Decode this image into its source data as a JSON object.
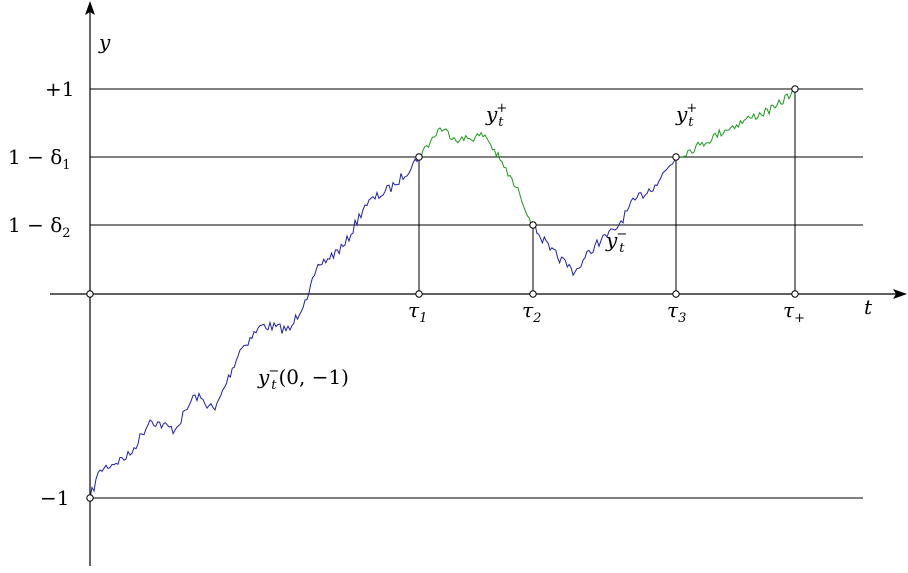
{
  "axes": {
    "x_label": "t",
    "y_label": "y"
  },
  "levels": [
    {
      "value": 1,
      "label": "+1"
    },
    {
      "value": 0.8,
      "label": "1 − δ",
      "sub": "1"
    },
    {
      "value": 0.6,
      "label": "1 − δ",
      "sub": "2"
    },
    {
      "value": -1,
      "label": "−1"
    }
  ],
  "times": [
    {
      "label": "τ",
      "sub": "1"
    },
    {
      "label": "τ",
      "sub": "2"
    },
    {
      "label": "τ",
      "sub": "3"
    },
    {
      "label": "τ",
      "sub": "+"
    }
  ],
  "path_labels": {
    "minus_start": {
      "base": "y",
      "sub": "t",
      "sup": "−",
      "suffix": "(0, −1)"
    },
    "plus_1": {
      "base": "y",
      "sub": "t",
      "sup": "+"
    },
    "minus_2": {
      "base": "y",
      "sub": "t",
      "sup": "−"
    },
    "plus_2": {
      "base": "y",
      "sub": "t",
      "sup": "+"
    }
  },
  "colors": {
    "minus_path": "#1f1fb0",
    "plus_path": "#1a9a1a",
    "axes": "#000000"
  }
}
